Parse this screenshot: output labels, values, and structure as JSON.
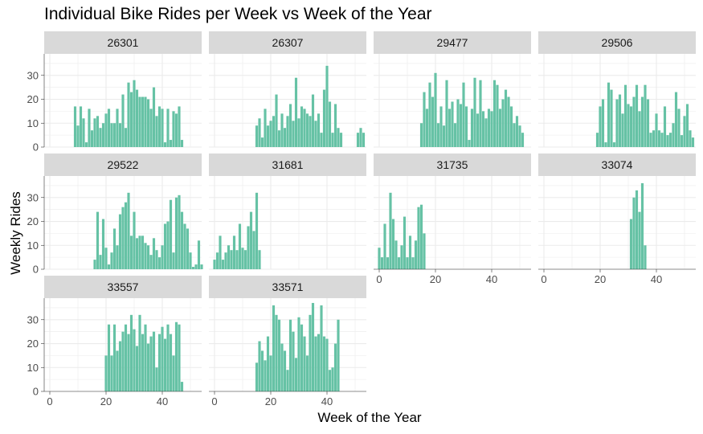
{
  "chart_data": {
    "type": "bar",
    "title": "Individual Bike Rides per Week vs Week of the Year",
    "xlabel": "Week of the Year",
    "ylabel": "Weekly Rides",
    "xlim": [
      -2,
      54
    ],
    "ylim": [
      0,
      39
    ],
    "x_ticks": [
      0,
      20,
      40
    ],
    "y_ticks": [
      0,
      10,
      20,
      30
    ],
    "bar_color": "#66c2a5",
    "strip_color": "#d9d9d9",
    "grid": true,
    "facets": [
      {
        "label": "26301",
        "points": [
          [
            9,
            17
          ],
          [
            10,
            9
          ],
          [
            11,
            17
          ],
          [
            12,
            12
          ],
          [
            13,
            2
          ],
          [
            14,
            16
          ],
          [
            15,
            7
          ],
          [
            16,
            12
          ],
          [
            17,
            13
          ],
          [
            18,
            8
          ],
          [
            19,
            10
          ],
          [
            20,
            14
          ],
          [
            21,
            16
          ],
          [
            22,
            10
          ],
          [
            23,
            10
          ],
          [
            24,
            16
          ],
          [
            25,
            10
          ],
          [
            26,
            22
          ],
          [
            27,
            8
          ],
          [
            28,
            27
          ],
          [
            29,
            23
          ],
          [
            30,
            28
          ],
          [
            31,
            24
          ],
          [
            32,
            21
          ],
          [
            33,
            21
          ],
          [
            34,
            21
          ],
          [
            35,
            20
          ],
          [
            36,
            16
          ],
          [
            37,
            25
          ],
          [
            38,
            13
          ],
          [
            39,
            17
          ],
          [
            40,
            16
          ],
          [
            41,
            2
          ],
          [
            42,
            16
          ],
          [
            43,
            3
          ],
          [
            44,
            15
          ],
          [
            45,
            14
          ],
          [
            46,
            17
          ],
          [
            47,
            3
          ]
        ]
      },
      {
        "label": "26307",
        "points": [
          [
            15,
            9
          ],
          [
            16,
            12
          ],
          [
            17,
            4
          ],
          [
            18,
            16
          ],
          [
            19,
            9
          ],
          [
            20,
            11
          ],
          [
            21,
            13
          ],
          [
            22,
            22
          ],
          [
            23,
            7
          ],
          [
            24,
            14
          ],
          [
            25,
            8
          ],
          [
            26,
            13
          ],
          [
            27,
            18
          ],
          [
            28,
            11
          ],
          [
            29,
            29
          ],
          [
            30,
            12
          ],
          [
            31,
            17
          ],
          [
            32,
            16
          ],
          [
            33,
            14
          ],
          [
            34,
            13
          ],
          [
            35,
            22
          ],
          [
            36,
            11
          ],
          [
            37,
            14
          ],
          [
            38,
            6
          ],
          [
            39,
            24
          ],
          [
            40,
            34
          ],
          [
            41,
            19
          ],
          [
            42,
            6
          ],
          [
            43,
            18
          ],
          [
            44,
            8
          ],
          [
            45,
            6
          ],
          [
            51,
            6
          ],
          [
            52,
            8
          ],
          [
            53,
            6
          ]
        ]
      },
      {
        "label": "29477",
        "points": [
          [
            15,
            10
          ],
          [
            16,
            23
          ],
          [
            17,
            16
          ],
          [
            18,
            27
          ],
          [
            19,
            21
          ],
          [
            20,
            31
          ],
          [
            21,
            10
          ],
          [
            22,
            17
          ],
          [
            23,
            9
          ],
          [
            24,
            28
          ],
          [
            25,
            16
          ],
          [
            26,
            19
          ],
          [
            27,
            10
          ],
          [
            28,
            20
          ],
          [
            29,
            18
          ],
          [
            30,
            27
          ],
          [
            31,
            17
          ],
          [
            32,
            3
          ],
          [
            33,
            16
          ],
          [
            34,
            29
          ],
          [
            35,
            14
          ],
          [
            36,
            28
          ],
          [
            37,
            15
          ],
          [
            38,
            12
          ],
          [
            39,
            16
          ],
          [
            40,
            15
          ],
          [
            41,
            28
          ],
          [
            42,
            26
          ],
          [
            43,
            16
          ],
          [
            44,
            20
          ],
          [
            45,
            24
          ],
          [
            46,
            21
          ],
          [
            47,
            17
          ],
          [
            48,
            10
          ],
          [
            49,
            13
          ],
          [
            50,
            9
          ],
          [
            51,
            6
          ]
        ]
      },
      {
        "label": "29506",
        "points": [
          [
            19,
            6
          ],
          [
            20,
            17
          ],
          [
            21,
            20
          ],
          [
            22,
            2
          ],
          [
            23,
            27
          ],
          [
            24,
            24
          ],
          [
            25,
            2
          ],
          [
            26,
            20
          ],
          [
            27,
            22
          ],
          [
            28,
            14
          ],
          [
            29,
            26
          ],
          [
            30,
            18
          ],
          [
            31,
            17
          ],
          [
            32,
            21
          ],
          [
            33,
            26
          ],
          [
            34,
            15
          ],
          [
            35,
            21
          ],
          [
            36,
            26
          ],
          [
            37,
            20
          ],
          [
            38,
            6
          ],
          [
            39,
            7
          ],
          [
            40,
            14
          ],
          [
            41,
            7
          ],
          [
            42,
            6
          ],
          [
            43,
            17
          ],
          [
            44,
            5
          ],
          [
            45,
            6
          ],
          [
            46,
            10
          ],
          [
            47,
            23
          ],
          [
            48,
            16
          ],
          [
            49,
            5
          ],
          [
            50,
            13
          ],
          [
            51,
            18
          ],
          [
            52,
            7
          ],
          [
            53,
            4
          ]
        ]
      },
      {
        "label": "29522",
        "points": [
          [
            16,
            4
          ],
          [
            17,
            24
          ],
          [
            18,
            6
          ],
          [
            19,
            21
          ],
          [
            20,
            9
          ],
          [
            21,
            2
          ],
          [
            22,
            7
          ],
          [
            23,
            17
          ],
          [
            24,
            10
          ],
          [
            25,
            23
          ],
          [
            26,
            26
          ],
          [
            27,
            28
          ],
          [
            28,
            32
          ],
          [
            29,
            14
          ],
          [
            30,
            24
          ],
          [
            31,
            13
          ],
          [
            32,
            14
          ],
          [
            33,
            14
          ],
          [
            34,
            11
          ],
          [
            35,
            10
          ],
          [
            36,
            6
          ],
          [
            37,
            13
          ],
          [
            38,
            8
          ],
          [
            39,
            5
          ],
          [
            40,
            10
          ],
          [
            41,
            19
          ],
          [
            42,
            20
          ],
          [
            43,
            29
          ],
          [
            44,
            7
          ],
          [
            45,
            30
          ],
          [
            46,
            31
          ],
          [
            47,
            24
          ],
          [
            48,
            19
          ],
          [
            49,
            17
          ],
          [
            50,
            7
          ],
          [
            51,
            1
          ],
          [
            52,
            2
          ],
          [
            53,
            12
          ],
          [
            54,
            2
          ]
        ]
      },
      {
        "label": "31681",
        "points": [
          [
            0,
            4
          ],
          [
            1,
            7
          ],
          [
            2,
            14
          ],
          [
            3,
            4
          ],
          [
            4,
            7
          ],
          [
            5,
            10
          ],
          [
            6,
            8
          ],
          [
            7,
            14
          ],
          [
            8,
            8
          ],
          [
            9,
            19
          ],
          [
            10,
            9
          ],
          [
            11,
            8
          ],
          [
            12,
            18
          ],
          [
            13,
            24
          ],
          [
            14,
            16
          ],
          [
            15,
            32
          ],
          [
            16,
            8
          ]
        ]
      },
      {
        "label": "31735",
        "points": [
          [
            0,
            9
          ],
          [
            1,
            5
          ],
          [
            2,
            19
          ],
          [
            3,
            5
          ],
          [
            4,
            32
          ],
          [
            5,
            21
          ],
          [
            6,
            12
          ],
          [
            7,
            5
          ],
          [
            8,
            10
          ],
          [
            9,
            22
          ],
          [
            10,
            5
          ],
          [
            11,
            14
          ],
          [
            12,
            5
          ],
          [
            13,
            12
          ],
          [
            14,
            26
          ],
          [
            15,
            27
          ],
          [
            16,
            15
          ]
        ]
      },
      {
        "label": "33074",
        "points": [
          [
            31,
            21
          ],
          [
            32,
            30
          ],
          [
            33,
            33
          ],
          [
            34,
            24
          ],
          [
            35,
            36
          ],
          [
            36,
            10
          ]
        ]
      },
      {
        "label": "33557",
        "points": [
          [
            20,
            15
          ],
          [
            21,
            28
          ],
          [
            22,
            15
          ],
          [
            23,
            28
          ],
          [
            24,
            17
          ],
          [
            25,
            21
          ],
          [
            26,
            25
          ],
          [
            27,
            28
          ],
          [
            28,
            24
          ],
          [
            29,
            32
          ],
          [
            30,
            26
          ],
          [
            31,
            19
          ],
          [
            32,
            32
          ],
          [
            33,
            24
          ],
          [
            34,
            28
          ],
          [
            35,
            20
          ],
          [
            36,
            23
          ],
          [
            37,
            25
          ],
          [
            38,
            10
          ],
          [
            39,
            24
          ],
          [
            40,
            27
          ],
          [
            41,
            22
          ],
          [
            42,
            28
          ],
          [
            43,
            24
          ],
          [
            44,
            15
          ],
          [
            45,
            29
          ],
          [
            46,
            28
          ],
          [
            47,
            4
          ]
        ]
      },
      {
        "label": "33571",
        "points": [
          [
            15,
            12
          ],
          [
            16,
            21
          ],
          [
            17,
            17
          ],
          [
            18,
            13
          ],
          [
            19,
            23
          ],
          [
            20,
            15
          ],
          [
            21,
            36
          ],
          [
            22,
            32
          ],
          [
            23,
            30
          ],
          [
            24,
            20
          ],
          [
            25,
            17
          ],
          [
            26,
            9
          ],
          [
            27,
            30
          ],
          [
            28,
            25
          ],
          [
            29,
            14
          ],
          [
            30,
            31
          ],
          [
            31,
            28
          ],
          [
            32,
            23
          ],
          [
            33,
            15
          ],
          [
            34,
            32
          ],
          [
            35,
            37
          ],
          [
            36,
            23
          ],
          [
            37,
            24
          ],
          [
            38,
            36
          ],
          [
            39,
            23
          ],
          [
            40,
            22
          ],
          [
            41,
            9
          ],
          [
            42,
            10
          ],
          [
            43,
            20
          ],
          [
            44,
            30
          ]
        ]
      }
    ]
  }
}
